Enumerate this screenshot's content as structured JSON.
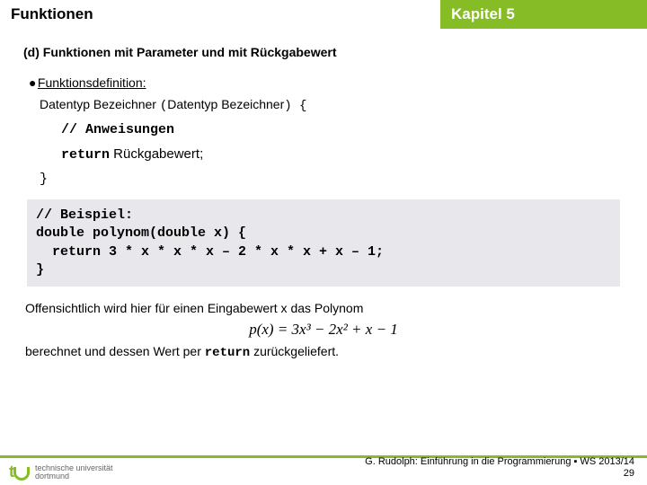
{
  "colors": {
    "accent": "#86bc25",
    "codebg": "#e8e8ec",
    "text": "#000000",
    "white": "#ffffff"
  },
  "header": {
    "left": "Funktionen",
    "right": "Kapitel 5"
  },
  "subtitle": "(d) Funktionen mit Parameter und mit Rückgabewert",
  "bullet": {
    "dot": "●",
    "label": "Funktionsdefinition:"
  },
  "def": {
    "line": "Datentyp Bezeichner (Datentyp Bezeichner) {",
    "comment": "// Anweisungen",
    "return_kw": "return",
    "return_val": " Rückgabewert;",
    "close": "}"
  },
  "code": {
    "l1": "// Beispiel:",
    "l2": "double polynom(double x) {",
    "l3": "  return 3 * x * x * x – 2 * x * x + x – 1;",
    "l4": "}"
  },
  "para1": "Offensichtlich wird hier für einen Eingabewert x das Polynom",
  "formula": "p(x) = 3x³ − 2x² + x − 1",
  "para2_a": "berechnet und dessen Wert per ",
  "para2_code": "return",
  "para2_b": " zurückgeliefert.",
  "footer": {
    "line": "G. Rudolph: Einführung in die Programmierung ▪ WS 2013/14",
    "page": "29"
  },
  "logo": {
    "t": "t",
    "name1": "technische universität",
    "name2": "dortmund"
  }
}
